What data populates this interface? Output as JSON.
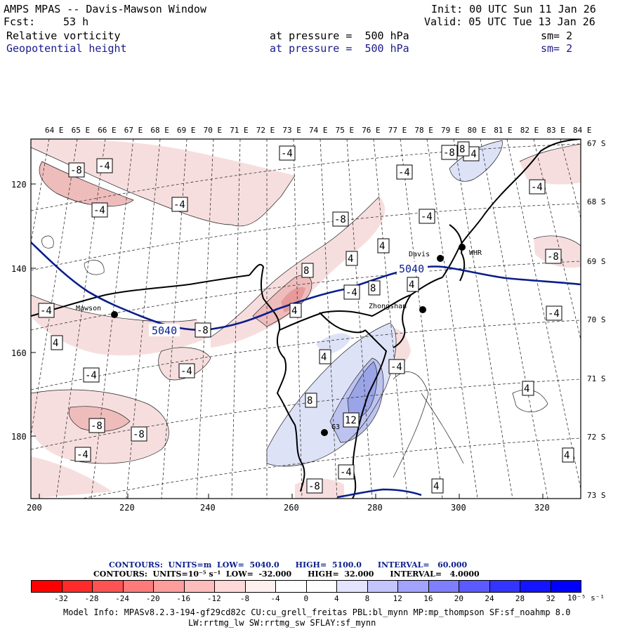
{
  "header": {
    "title": "AMPS MPAS -- Davis-Mawson Window",
    "init": "Init: 00 UTC Sun 11 Jan 26",
    "fcst_label": "Fcst:",
    "fcst_value": "53 h",
    "valid": "Valid: 05 UTC Tue 13 Jan 26",
    "field1": "Relative vorticity",
    "field1_level": "at pressure =  500 hPa",
    "field1_sm": "sm= 2",
    "field2": "Geopotential height",
    "field2_level": "at pressure =  500 hPa",
    "field2_sm": "sm= 2"
  },
  "map": {
    "lon_labels": [
      "64 E",
      "65 E",
      "66 E",
      "67 E",
      "68 E",
      "69 E",
      "70 E",
      "71 E",
      "72 E",
      "73 E",
      "74 E",
      "75 E",
      "76 E",
      "77 E",
      "78 E",
      "79 E",
      "80 E",
      "81 E",
      "82 E",
      "83 E",
      "84 E"
    ],
    "lat_labels": [
      "67 S",
      "68 S",
      "69 S",
      "70 S",
      "71 S",
      "72 S",
      "73 S"
    ],
    "x_ticks": [
      "200",
      "220",
      "240",
      "260",
      "280",
      "300",
      "320"
    ],
    "y_ticks": [
      "120",
      "140",
      "160",
      "180"
    ],
    "stations": [
      {
        "name": "Mawson"
      },
      {
        "name": "Davis"
      },
      {
        "name": "WHR"
      },
      {
        "name": "Zhongshan"
      },
      {
        "name": "G3"
      }
    ],
    "height_contour_labels": [
      "5040",
      "5040"
    ],
    "vorticity_labels": [
      "-4",
      "-8",
      "-4",
      "-4",
      "-4",
      "-8",
      "-4",
      "-4",
      "-8",
      "-4",
      "4",
      "8",
      "4",
      "-8",
      "8",
      "4",
      "-4",
      "4",
      "-4",
      "-4",
      "4",
      "-4",
      "4",
      "-4",
      "-4",
      "-8",
      "4",
      "8",
      "12",
      "-4",
      "-8",
      "4",
      "4",
      "-8",
      "-8",
      "-4",
      "8",
      "-4"
    ],
    "fill_colors": {
      "neg_light": "#f7dede",
      "neg_mid": "#efbcbc",
      "neg_strong": "#e79a9a",
      "pos_light": "#dde2f7",
      "pos_mid": "#bcc3ef",
      "pos_strong": "#9aa4e7",
      "height_line": "#0a1e8c"
    }
  },
  "legend": {
    "contour1": "CONTOURS:  UNITS=m  LOW=  5040.0      HIGH=  5100.0      INTERVAL=   60.000",
    "contour2": "CONTOURS:  UNITS=10⁻⁵ s⁻¹  LOW=  -32.000      HIGH=  32.000      INTERVAL=   4.0000",
    "colorbar_labels": [
      "-32",
      "-28",
      "-24",
      "-20",
      "-16",
      "-12",
      "-8",
      "-4",
      "0",
      "4",
      "8",
      "12",
      "16",
      "20",
      "24",
      "28",
      "32"
    ],
    "colorbar_units": "10⁻⁵ s⁻¹",
    "colorbar_colors": [
      "#ff0000",
      "#ff3333",
      "#ff5c5c",
      "#ff8080",
      "#ffa3a3",
      "#ffbfbf",
      "#ffdada",
      "#fff0f0",
      "#ffffff",
      "#ffffff",
      "#e6e6ff",
      "#c6c6ff",
      "#a4a4ff",
      "#8080ff",
      "#5c5cff",
      "#3333ff",
      "#0000ff"
    ]
  },
  "footer": {
    "line1": "Model Info: MPASv8.2.3-194-gf29cd82c CU:cu_grell_freitas PBL:bl_mynn MP:mp_thompson SF:sf_noahmp 8.0",
    "line2": "LW:rrtmg_lw SW:rrtmg_sw SFLAY:sf_mynn"
  }
}
